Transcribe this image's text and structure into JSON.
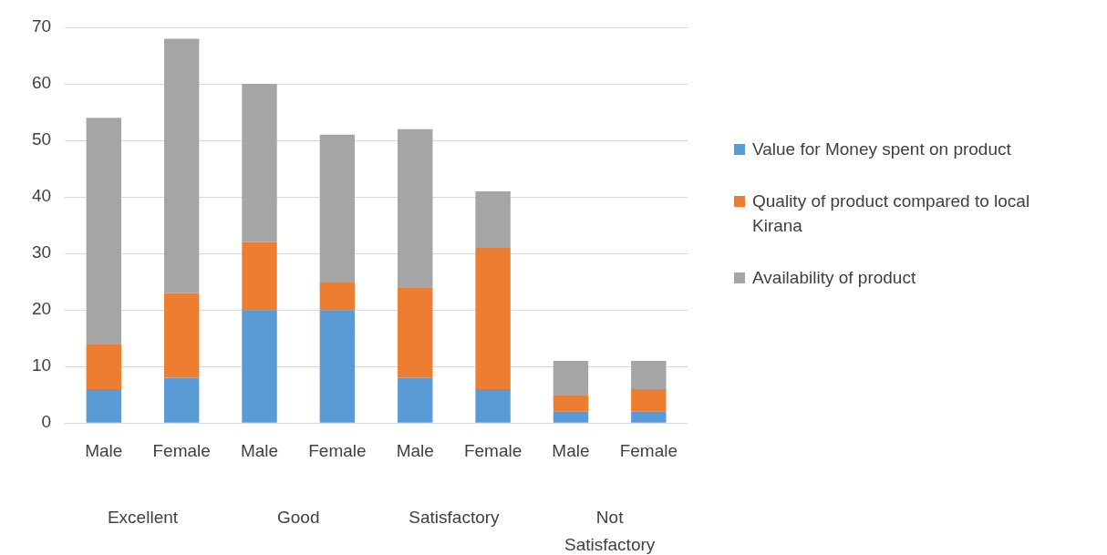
{
  "chart_data": {
    "type": "bar",
    "stacked": true,
    "categories": [
      "Male",
      "Female",
      "Male",
      "Female",
      "Male",
      "Female",
      "Male",
      "Female"
    ],
    "series": [
      {
        "name": "Value for Money spent on product",
        "color": "#5b9bd5",
        "values": [
          6,
          8,
          20,
          20,
          8,
          6,
          2,
          2
        ]
      },
      {
        "name": "Quality of product compared to local Kirana",
        "color": "#ed7d31",
        "values": [
          8,
          15,
          12,
          5,
          16,
          25,
          3,
          4
        ]
      },
      {
        "name": "Availability of product",
        "color": "#a5a5a5",
        "values": [
          40,
          45,
          28,
          26,
          28,
          10,
          6,
          5
        ]
      }
    ],
    "annotations": [
      "Excellent",
      "Good",
      "Satisfactory",
      "Not Satisfactory"
    ],
    "ylim": [
      0,
      70
    ],
    "yticks": [
      0,
      10,
      20,
      30,
      40,
      50,
      60,
      70
    ],
    "grid": "y",
    "legend": "right"
  }
}
